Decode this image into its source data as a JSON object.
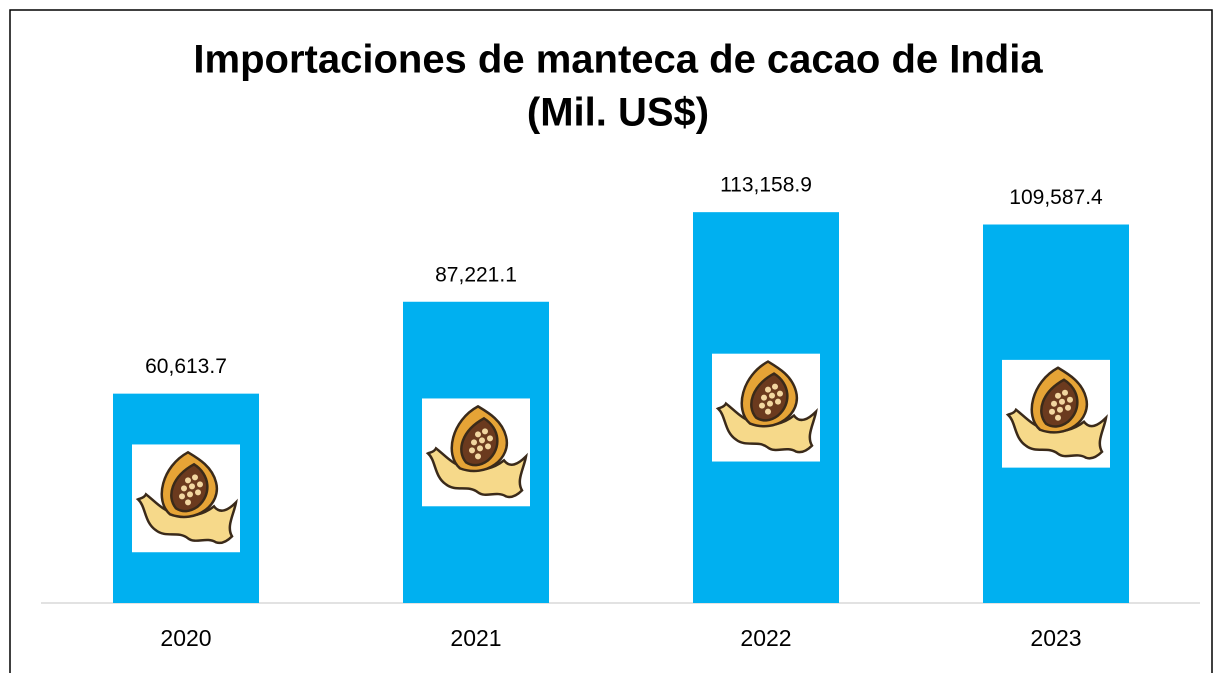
{
  "chart_data": {
    "type": "bar",
    "title": "Importaciones de manteca de cacao de India",
    "subtitle": "(Mil. US$)",
    "categories": [
      "2020",
      "2021",
      "2022",
      "2023"
    ],
    "values": [
      60613.7,
      87221.1,
      113158.9,
      109587.4
    ],
    "value_labels": [
      "60,613.7",
      "87,221.1",
      "113,158.9",
      "109,587.4"
    ],
    "color": "#00b0f0",
    "ylim": [
      0,
      130000
    ]
  }
}
